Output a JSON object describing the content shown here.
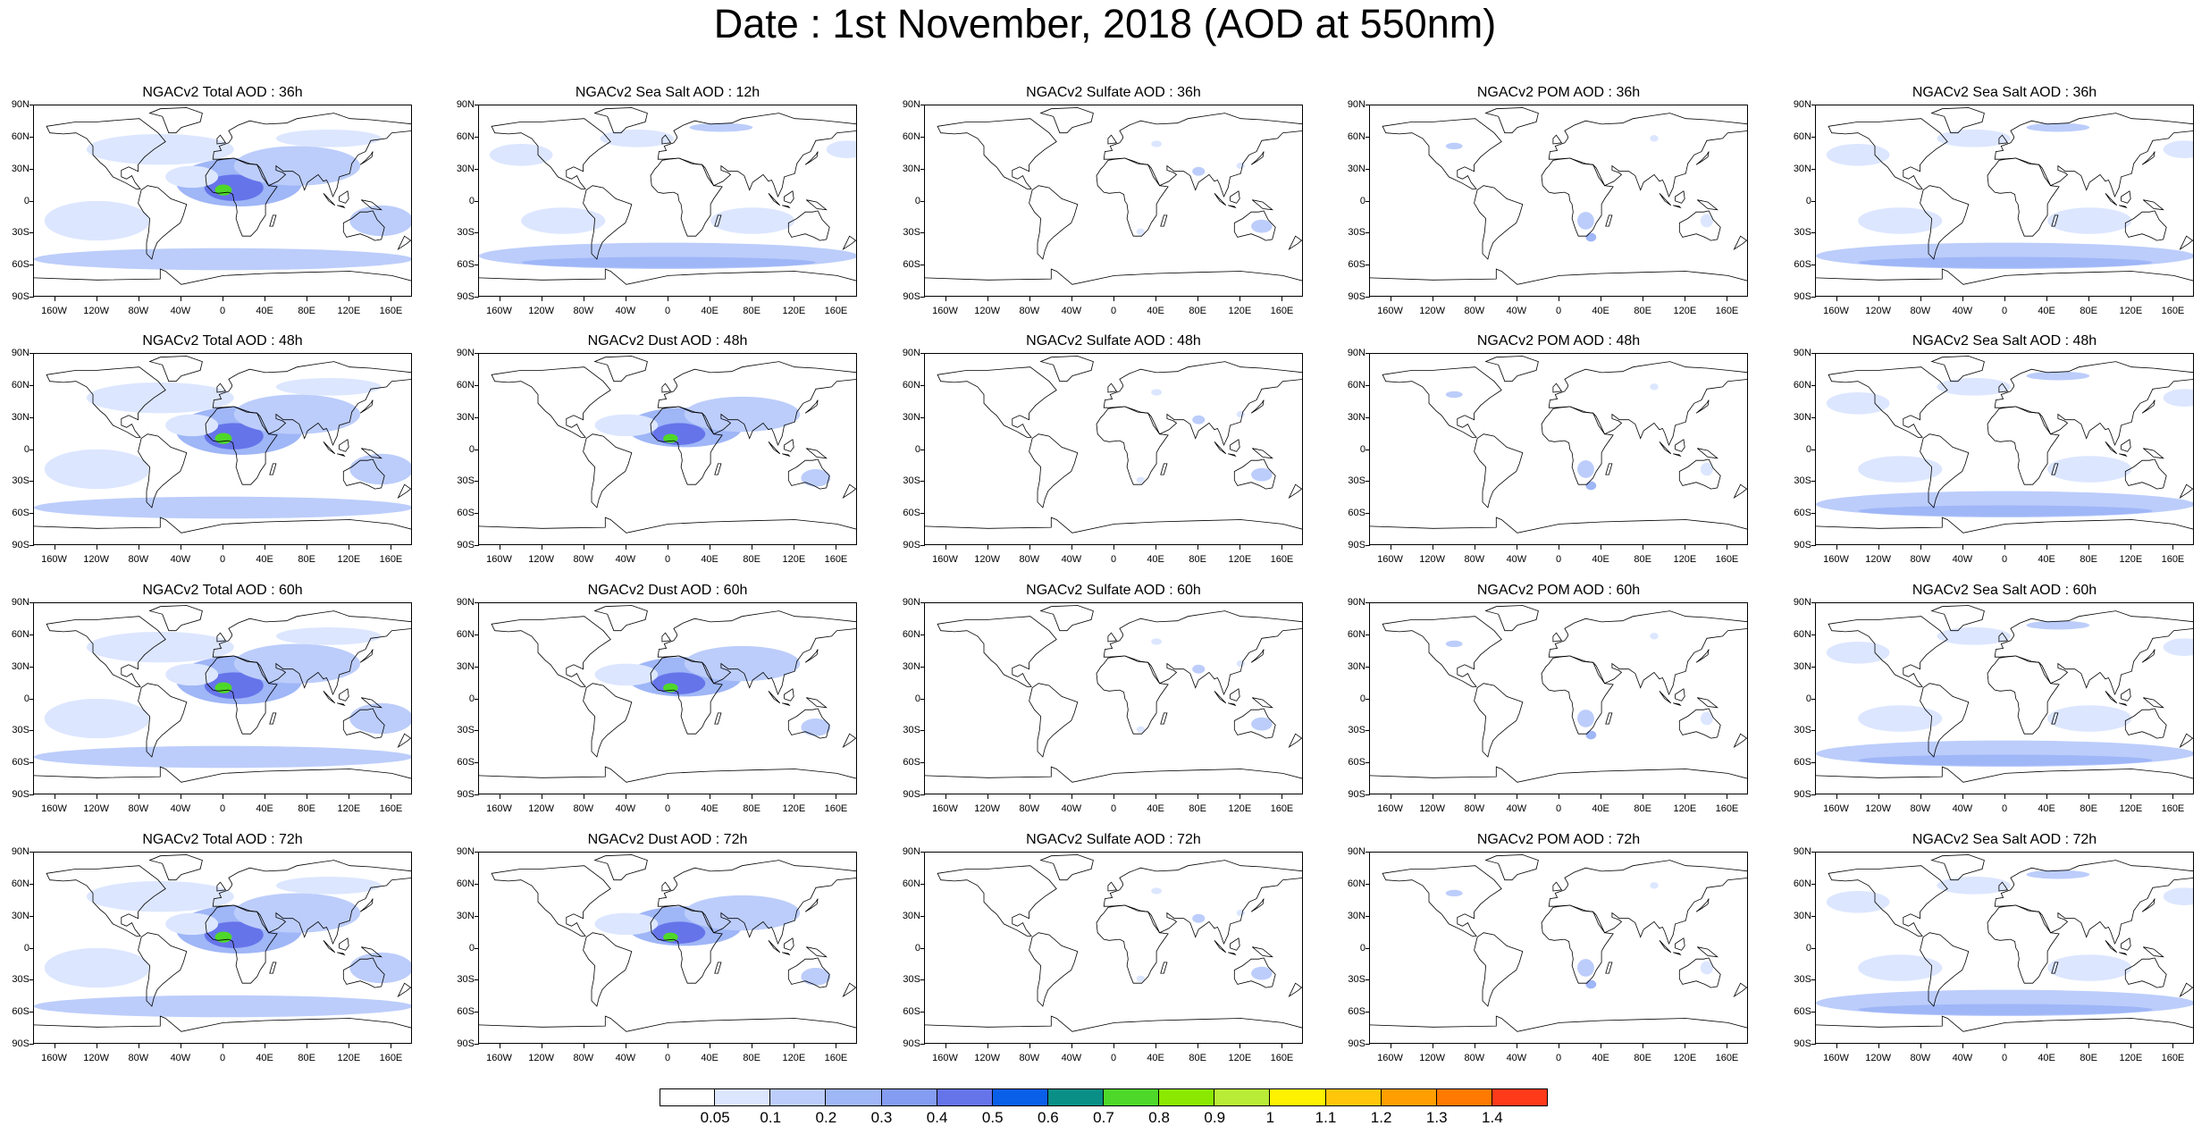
{
  "title": "Date : 1st November, 2018 (AOD at 550nm)",
  "panels": [
    [
      "NGACv2 Total AOD : 36h",
      "NGACv2 Sea Salt  AOD : 12h",
      "NGACv2 Sulfate AOD : 36h",
      "NGACv2 POM AOD : 36h",
      "NGACv2 Sea Salt AOD : 36h"
    ],
    [
      "NGACv2 Total AOD : 48h",
      "NGACv2 Dust AOD : 48h",
      "NGACv2 Sulfate AOD : 48h",
      "NGACv2 POM AOD : 48h",
      "NGACv2 Sea Salt AOD : 48h"
    ],
    [
      "NGACv2 Total AOD : 60h",
      "NGACv2 Dust AOD : 60h",
      "NGACv2 Sulfate AOD : 60h",
      "NGACv2 POM AOD : 60h",
      "NGACv2 Sea Salt AOD : 60h"
    ],
    [
      "NGACv2 Total AOD : 72h",
      "NGACv2 Dust AOD : 72h",
      "NGACv2 Sulfate AOD : 72h",
      "NGACv2 POM AOD : 72h",
      "NGACv2 Sea Salt  AOD : 72h"
    ]
  ],
  "lat_ticks": [
    "90N",
    "60N",
    "30N",
    "0",
    "30S",
    "60S",
    "90S"
  ],
  "lon_ticks": [
    "160W",
    "120W",
    "80W",
    "40W",
    "0",
    "40E",
    "80E",
    "120E",
    "160E"
  ],
  "legend": {
    "labels": [
      "0.05",
      "0.1",
      "0.2",
      "0.3",
      "0.4",
      "0.5",
      "0.6",
      "0.7",
      "0.8",
      "0.9",
      "1",
      "1.1",
      "1.2",
      "1.3",
      "1.4"
    ],
    "colors": [
      "#ffffff",
      "#dce6ff",
      "#bccdfb",
      "#9fb6f7",
      "#849cf2",
      "#6674ea",
      "#0a5fe8",
      "#0a8f87",
      "#4ed829",
      "#8be800",
      "#b9ec36",
      "#fff200",
      "#ffc60a",
      "#ff9e00",
      "#ff7a00",
      "#ff3a1a"
    ]
  }
}
